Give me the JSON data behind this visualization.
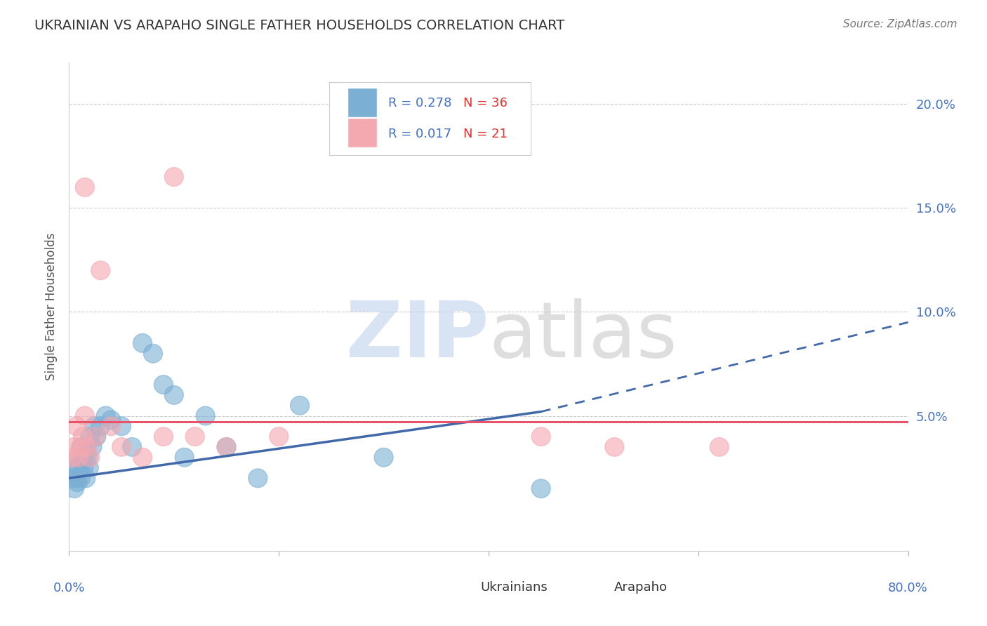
{
  "title": "UKRAINIAN VS ARAPAHO SINGLE FATHER HOUSEHOLDS CORRELATION CHART",
  "source": "Source: ZipAtlas.com",
  "ylabel": "Single Father Households",
  "watermark": "ZIPatlas",
  "legend_r1": "R = 0.278",
  "legend_n1": "N = 36",
  "legend_r2": "R = 0.017",
  "legend_n2": "N = 21",
  "xlim": [
    0.0,
    80.0
  ],
  "ylim": [
    -1.5,
    22.0
  ],
  "yticks": [
    0.0,
    5.0,
    10.0,
    15.0,
    20.0
  ],
  "ytick_labels": [
    "",
    "5.0%",
    "10.0%",
    "15.0%",
    "20.0%"
  ],
  "blue_color": "#7BAFD4",
  "pink_color": "#F4A8B0",
  "trend_blue": "#4169AA",
  "trend_pink": "#E8526A",
  "blue_scatter_x": [
    0.3,
    0.5,
    0.6,
    0.7,
    0.8,
    0.9,
    1.0,
    1.1,
    1.2,
    1.3,
    1.4,
    1.5,
    1.6,
    1.7,
    1.8,
    1.9,
    2.0,
    2.2,
    2.4,
    2.6,
    3.0,
    3.5,
    4.0,
    5.0,
    6.0,
    7.0,
    8.0,
    9.0,
    10.0,
    11.0,
    13.0,
    15.0,
    18.0,
    22.0,
    30.0,
    45.0
  ],
  "blue_scatter_y": [
    2.0,
    1.5,
    2.5,
    2.0,
    1.8,
    3.0,
    2.5,
    2.0,
    3.5,
    2.8,
    2.5,
    3.0,
    2.0,
    3.5,
    3.0,
    2.5,
    4.0,
    3.5,
    4.5,
    4.0,
    4.5,
    5.0,
    4.8,
    4.5,
    3.5,
    8.5,
    8.0,
    6.5,
    6.0,
    3.0,
    5.0,
    3.5,
    2.0,
    5.5,
    3.0,
    1.5
  ],
  "pink_scatter_x": [
    0.3,
    0.5,
    0.7,
    0.9,
    1.1,
    1.3,
    1.5,
    1.7,
    2.0,
    2.5,
    3.0,
    4.0,
    5.0,
    7.0,
    9.0,
    12.0,
    15.0,
    20.0,
    45.0,
    52.0,
    62.0
  ],
  "pink_scatter_y": [
    3.0,
    3.5,
    4.5,
    3.0,
    3.5,
    4.0,
    5.0,
    3.5,
    3.0,
    4.0,
    12.0,
    4.5,
    3.5,
    3.0,
    4.0,
    4.0,
    3.5,
    4.0,
    4.0,
    3.5,
    3.5
  ],
  "arapaho_outlier_x": 5.0,
  "arapaho_outlier_y": 16.0,
  "blue_trend_x0": 0.0,
  "blue_trend_y0": 2.0,
  "blue_trend_x1": 45.0,
  "blue_trend_y1": 5.2,
  "blue_trend_ext_x1": 80.0,
  "blue_trend_ext_y1": 9.5,
  "pink_trend_y": 4.7
}
